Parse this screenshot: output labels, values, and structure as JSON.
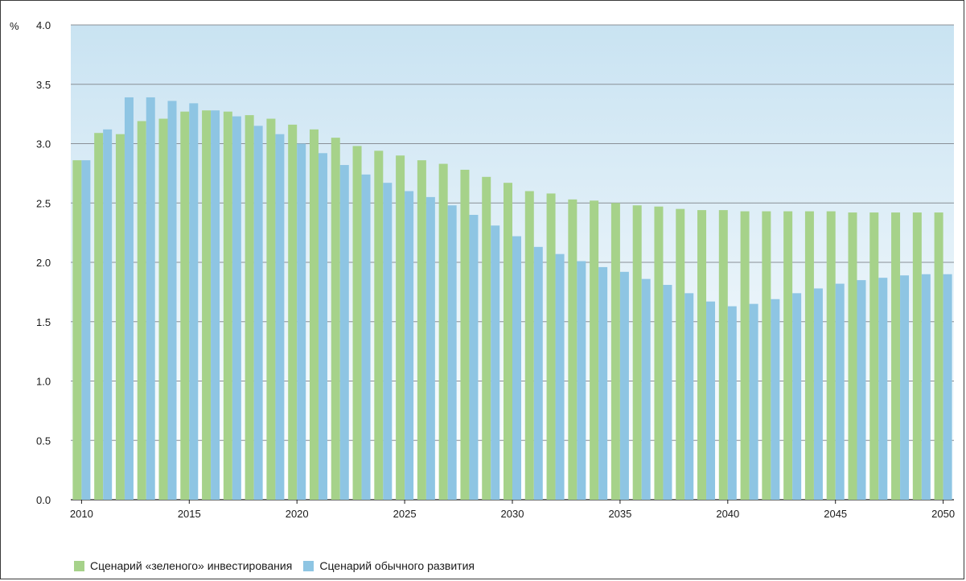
{
  "chart_data": {
    "type": "bar",
    "ylabel": "%",
    "ylim": [
      0,
      4
    ],
    "y_ticks": [
      "0.0",
      "0.5",
      "1.0",
      "1.5",
      "2.0",
      "2.5",
      "3.0",
      "3.5",
      "4.0"
    ],
    "x_tick_labels": [
      "2010",
      "2015",
      "2020",
      "2025",
      "2030",
      "2035",
      "2040",
      "2045",
      "2050"
    ],
    "categories": [
      2010,
      2011,
      2012,
      2013,
      2014,
      2015,
      2016,
      2017,
      2018,
      2019,
      2020,
      2021,
      2022,
      2023,
      2024,
      2025,
      2026,
      2027,
      2028,
      2029,
      2030,
      2031,
      2032,
      2033,
      2034,
      2035,
      2036,
      2037,
      2038,
      2039,
      2040,
      2041,
      2042,
      2043,
      2044,
      2045,
      2046,
      2047,
      2048,
      2049,
      2050
    ],
    "grid": true,
    "legend_position": "bottom-left",
    "series": [
      {
        "name": "Сценарий «зеленого» инвестирования",
        "color": "#a6d28a",
        "values": [
          2.86,
          3.09,
          3.08,
          3.19,
          3.21,
          3.27,
          3.28,
          3.27,
          3.24,
          3.21,
          3.16,
          3.12,
          3.05,
          2.98,
          2.94,
          2.9,
          2.86,
          2.83,
          2.78,
          2.72,
          2.67,
          2.6,
          2.58,
          2.53,
          2.52,
          2.5,
          2.48,
          2.47,
          2.45,
          2.44,
          2.44,
          2.43,
          2.43,
          2.43,
          2.43,
          2.43,
          2.42,
          2.42,
          2.42,
          2.42,
          2.42
        ]
      },
      {
        "name": "Сценарий обычного развития",
        "color": "#8ec5e3",
        "values": [
          2.86,
          3.12,
          3.39,
          3.39,
          3.36,
          3.34,
          3.28,
          3.23,
          3.15,
          3.08,
          3.0,
          2.92,
          2.82,
          2.74,
          2.67,
          2.6,
          2.55,
          2.48,
          2.4,
          2.31,
          2.22,
          2.13,
          2.07,
          2.01,
          1.96,
          1.92,
          1.86,
          1.81,
          1.74,
          1.67,
          1.63,
          1.65,
          1.69,
          1.74,
          1.78,
          1.82,
          1.85,
          1.87,
          1.89,
          1.9,
          1.9
        ]
      }
    ]
  },
  "colors": {
    "plot_background_top": "#c9e3f2",
    "plot_background_bottom": "#ffffff",
    "gridline": "#8a8f96"
  }
}
